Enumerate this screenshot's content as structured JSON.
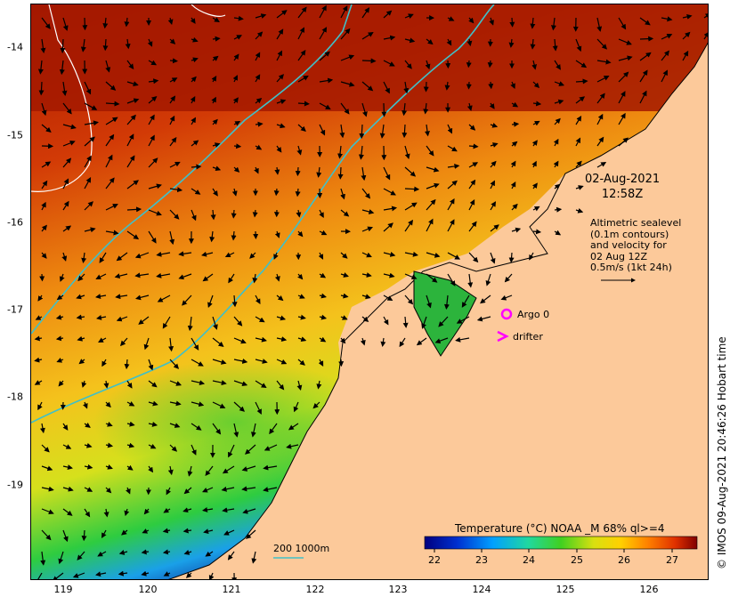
{
  "map": {
    "datetime_date": "02-Aug-2021",
    "datetime_time": "12:58Z",
    "legend_lines": [
      "Altimetric sealevel",
      "(0.1m contours)",
      "and velocity for",
      "02 Aug 12Z",
      "0.5m/s (1kt 24h)"
    ],
    "argo_label": "Argo 0",
    "drifter_label": "drifter",
    "isobath_label": "200  1000m",
    "colorbar_title": "Temperature (°C) NOAA _M 68% ql>=4",
    "colorbar_ticks": [
      "22",
      "23",
      "24",
      "25",
      "26",
      "27"
    ],
    "copyright": "© IMOS 09-Aug-2021 20:46:26 Hobart time",
    "y_ticks": [
      "-14",
      "-15",
      "-16",
      "-17",
      "-18",
      "-19"
    ],
    "x_ticks": [
      "119",
      "120",
      "121",
      "122",
      "123",
      "124",
      "125",
      "126"
    ],
    "colors": {
      "land": "#fcc99a",
      "warm": "#a11c00",
      "isobath_200": "#40c0c8",
      "isobath_1000": "#ffffff",
      "argo_marker": "#ff00ff",
      "drifter_marker": "#ff00ff"
    }
  }
}
